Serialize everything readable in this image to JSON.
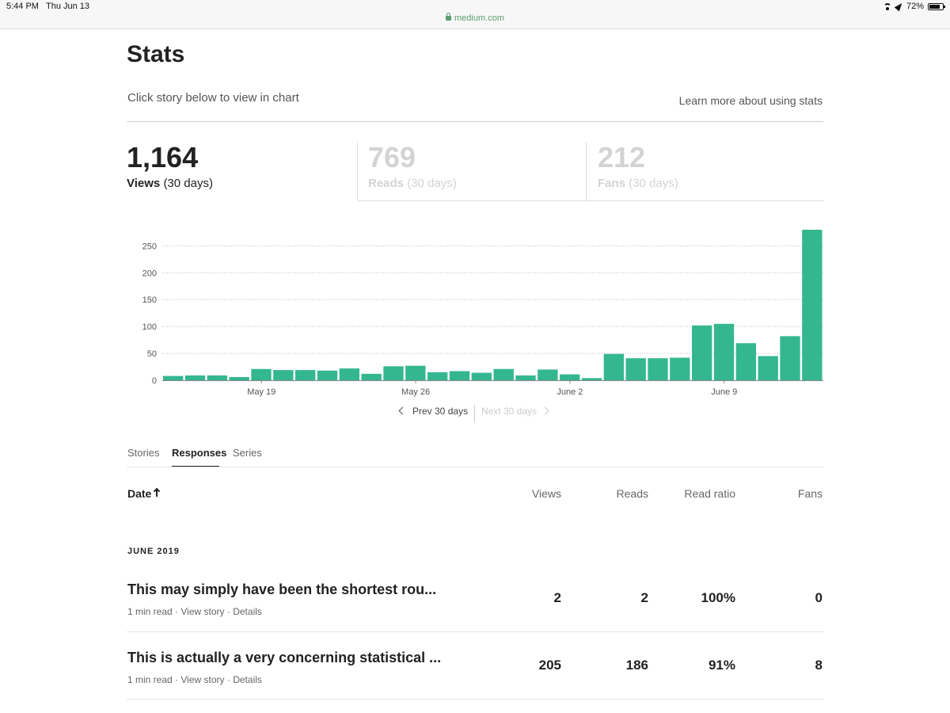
{
  "status_bar": {
    "time": "5:44 PM",
    "date": "Thu Jun 13",
    "url": "medium.com",
    "battery": "72%"
  },
  "header": {
    "title": "Stats",
    "subtitle": "Click story below to view in chart",
    "learn_more": "Learn more about using stats"
  },
  "stats": [
    {
      "value": "1,164",
      "label": "Views",
      "period": "(30 days)",
      "active": true
    },
    {
      "value": "769",
      "label": "Reads",
      "period": "(30 days)",
      "active": false
    },
    {
      "value": "212",
      "label": "Fans",
      "period": "(30 days)",
      "active": false
    }
  ],
  "chart_data": {
    "type": "bar",
    "title": "",
    "xlabel": "",
    "ylabel": "",
    "ylim": [
      0,
      280
    ],
    "yticks": [
      0,
      50,
      100,
      150,
      200,
      250
    ],
    "grid": true,
    "color": "#34b78f",
    "x_tick_labels": [
      {
        "label": "May 19",
        "index": 4
      },
      {
        "label": "May 26",
        "index": 11
      },
      {
        "label": "June 2",
        "index": 18
      },
      {
        "label": "June 9",
        "index": 25
      }
    ],
    "values": [
      8,
      9,
      9,
      6,
      21,
      19,
      19,
      18,
      22,
      12,
      26,
      27,
      15,
      17,
      14,
      21,
      9,
      20,
      11,
      4,
      49,
      41,
      41,
      42,
      102,
      105,
      69,
      45,
      82,
      280
    ]
  },
  "pager": {
    "prev": "Prev 30 days",
    "next": "Next 30 days"
  },
  "tabs": [
    "Stories",
    "Responses",
    "Series"
  ],
  "table": {
    "columns": {
      "date": "Date",
      "views": "Views",
      "reads": "Reads",
      "ratio": "Read ratio",
      "fans": "Fans"
    },
    "group": "JUNE 2019",
    "rows": [
      {
        "title": "This may simply have been the shortest rou...",
        "read_time": "1 min read",
        "view_story": "View story",
        "details": "Details",
        "views": "2",
        "reads": "2",
        "ratio": "100%",
        "fans": "0"
      },
      {
        "title": "This is actually a very concerning statistical ...",
        "read_time": "1 min read",
        "view_story": "View story",
        "details": "Details",
        "views": "205",
        "reads": "186",
        "ratio": "91%",
        "fans": "8"
      }
    ],
    "separator": "·"
  }
}
